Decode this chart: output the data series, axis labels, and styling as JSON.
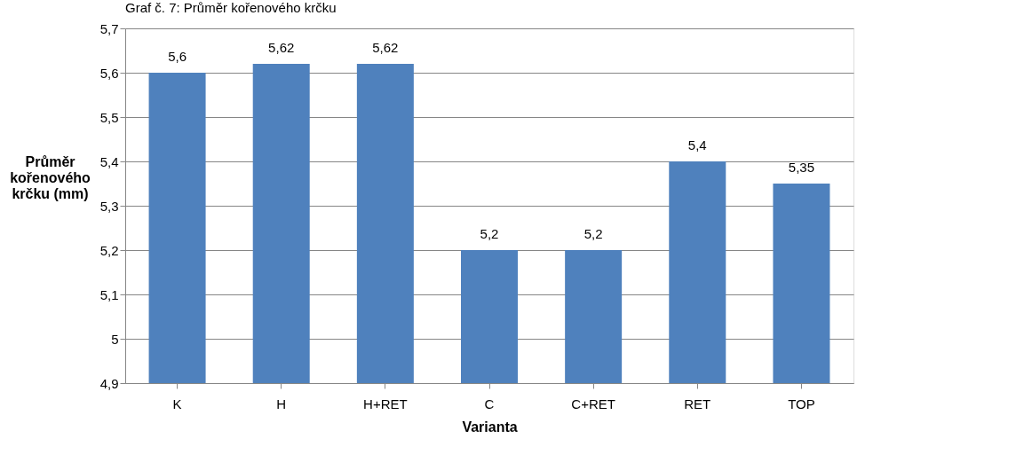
{
  "chart_data": {
    "type": "bar",
    "title": "Graf č. 7: Průměr kořenového krčku",
    "xlabel": "Varianta",
    "ylabel": "Průměr kořenového krčku (mm)",
    "categories": [
      "K",
      "H",
      "H+RET",
      "C",
      "C+RET",
      "RET",
      "TOP"
    ],
    "values": [
      5.6,
      5.62,
      5.62,
      5.2,
      5.2,
      5.4,
      5.35
    ],
    "value_labels": [
      "5,6",
      "5,62",
      "5,62",
      "5,2",
      "5,2",
      "5,4",
      "5,35"
    ],
    "color": "#4f81bd",
    "ylim": [
      4.9,
      5.7
    ],
    "yticks": [
      {
        "value": 4.9,
        "label": "4,9"
      },
      {
        "value": 5.0,
        "label": "5"
      },
      {
        "value": 5.1,
        "label": "5,1"
      },
      {
        "value": 5.2,
        "label": "5,2"
      },
      {
        "value": 5.3,
        "label": "5,3"
      },
      {
        "value": 5.4,
        "label": "5,4"
      },
      {
        "value": 5.5,
        "label": "5,5"
      },
      {
        "value": 5.6,
        "label": "5,6"
      },
      {
        "value": 5.7,
        "label": "5,7"
      }
    ],
    "grid": "y"
  }
}
